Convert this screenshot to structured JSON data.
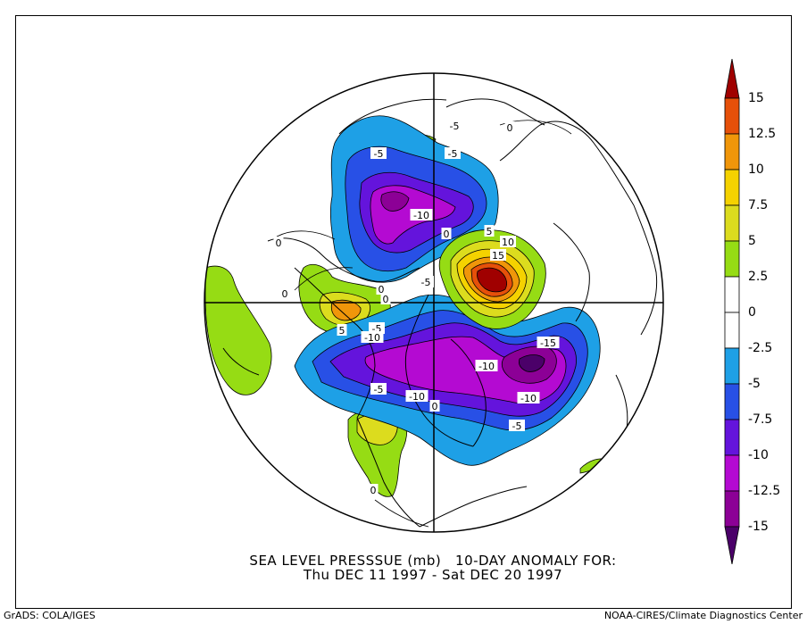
{
  "title": {
    "line1": "SEA LEVEL PRESSSUE (mb)   10-DAY ANOMALY FOR:",
    "line2": "Thu DEC 11 1997 - Sat DEC 20 1997"
  },
  "footer": {
    "left": "GrADS: COLA/IGES",
    "right": "NOAA-CIRES/Climate Diagnostics Center"
  },
  "colorbar": {
    "labels": [
      "15",
      "12.5",
      "10",
      "7.5",
      "5",
      "2.5",
      "0",
      "-2.5",
      "-5",
      "-7.5",
      "-10",
      "-12.5",
      "-15"
    ],
    "colors": [
      "#a00000",
      "#e6500a",
      "#f0960a",
      "#f5d200",
      "#dcdc1e",
      "#96dc14",
      "#ffffff",
      "#ffffff",
      "#1ea0e6",
      "#2850e6",
      "#6414dc",
      "#b40ad2",
      "#8c0096",
      "#4b0069"
    ]
  },
  "contour_labels": [
    "-5",
    "-5",
    "-10",
    "0",
    "5",
    "10",
    "15",
    "-5",
    "0",
    "0",
    "0",
    "5",
    "-5",
    "-10",
    "-5",
    "-15",
    "-10",
    "-10",
    "-10",
    "-5",
    "0",
    "-5",
    "0",
    "0",
    "0"
  ]
}
